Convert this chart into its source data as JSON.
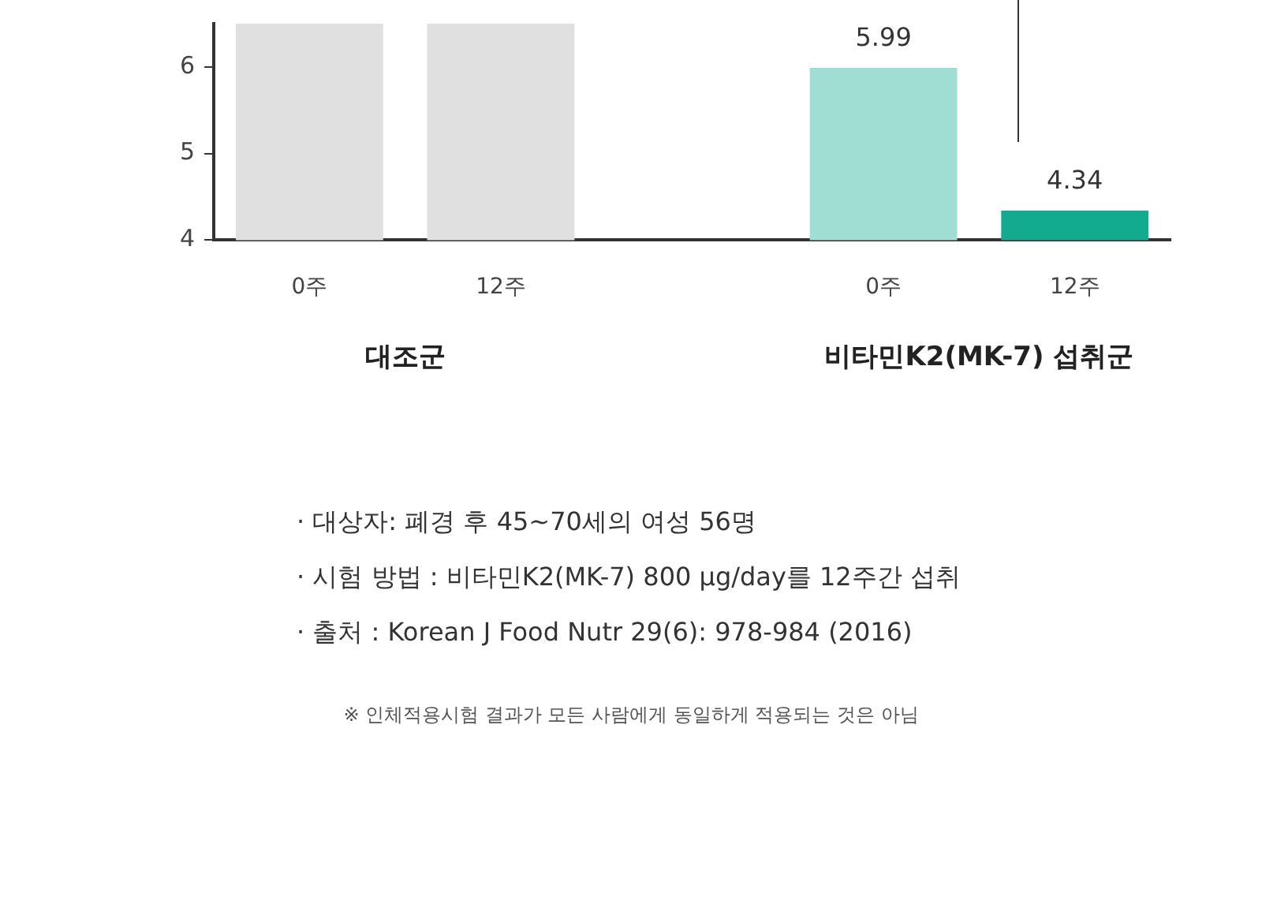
{
  "chart_data": {
    "type": "bar",
    "categories": [
      "0주",
      "12주",
      null,
      "0주",
      "12주"
    ],
    "values": [
      6.5,
      6.5,
      null,
      5.99,
      4.34
    ],
    "colors": [
      "#e0e0e0",
      "#e0e0e0",
      "#ffffff",
      "#a0ddd2",
      "#13ab8f"
    ],
    "value_labels": [
      null,
      null,
      null,
      "5.99",
      "4.34"
    ],
    "ylim": [
      4,
      6.5
    ],
    "yticks": [
      4,
      5,
      6
    ],
    "grid": false,
    "legend": false,
    "annotations": [
      "대조군",
      "비타민K2(MK-7) 섭취군",
      "· 대상자: 폐경 후 45~70세의 여성 56명",
      "· 시험 방법 : 비타민K2(MK-7) 800 μg/day를 12주간 섭취",
      "· 출처 : Korean J Food Nutr 29(6): 978-984 (2016)",
      "※ 인체적용시험 결과가 모든 사람에게 동일하게 적용되는 것은 아님"
    ]
  }
}
